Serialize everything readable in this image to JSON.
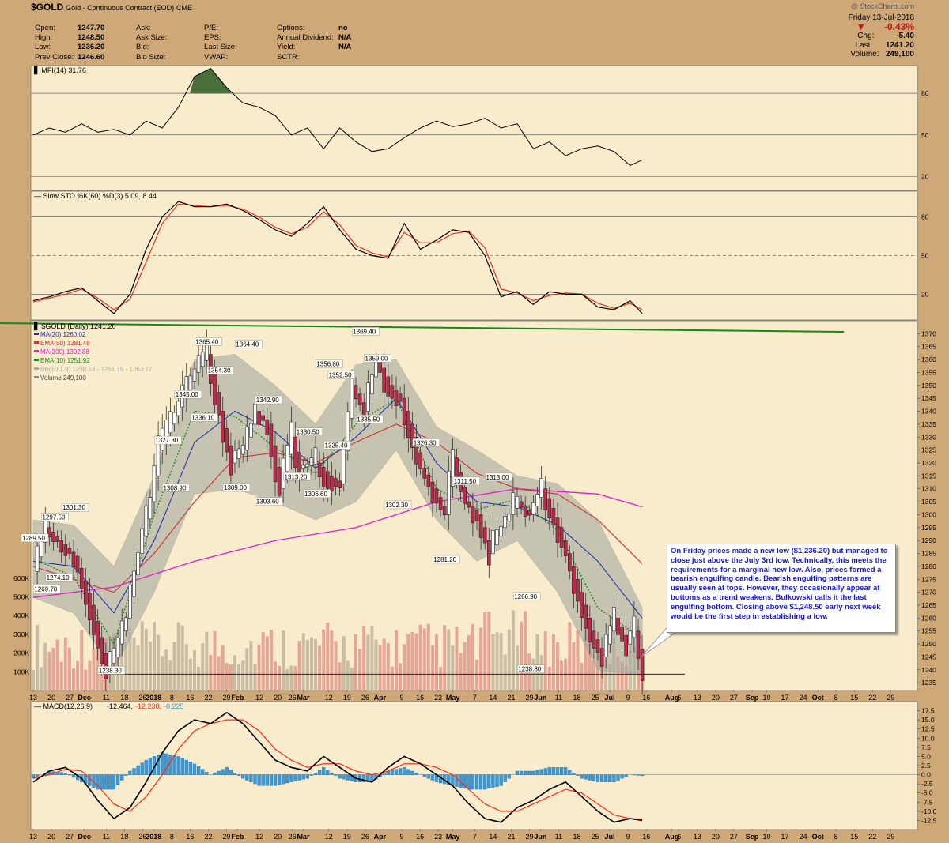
{
  "header": {
    "symbol": "$GOLD",
    "name": "Gold - Continuous Contract (EOD)",
    "exchange": "CME",
    "watermark": "@ StockCharts.com",
    "col1": [
      [
        "Open:",
        "1247.70"
      ],
      [
        "High:",
        "1248.50"
      ],
      [
        "Low:",
        "1236.20"
      ],
      [
        "Prev Close:",
        "1246.60"
      ]
    ],
    "col2": [
      [
        "Ask:",
        ""
      ],
      [
        "Ask Size:",
        ""
      ],
      [
        "Bid:",
        ""
      ],
      [
        "Bid Size:",
        ""
      ]
    ],
    "col3": [
      [
        "P/E:",
        ""
      ],
      [
        "EPS:",
        ""
      ],
      [
        "Last Size:",
        ""
      ],
      [
        "VWAP:",
        ""
      ]
    ],
    "col4": [
      [
        "Options:",
        "no"
      ],
      [
        "Annual Dividend:",
        "N/A"
      ],
      [
        "Yield:",
        "N/A"
      ],
      [
        "SCTR:",
        ""
      ]
    ],
    "date": "Friday  13-Jul-2018",
    "pct": "-0.43%",
    "chg_label": "Chg:",
    "chg": "-5.40",
    "last_label": "Last:",
    "last": "1241.20",
    "volume_label": "Volume:",
    "volume": "249,100"
  },
  "annotation": "On Friday prices made a new low ($1,236.20) but managed to close just above the July 3rd low. Technically, this meets the requirements for a marginal new low. Also, prices formed a bearish engulfing candle. Bearish engulfing patterns are usually seen at tops. However, they occasionally appear at bottoms as a trend weakens. Bulkowski calls it the last engulfing bottom. Closing above $1,248.50 early next week would be the first step in establishing a low.",
  "colors": {
    "background": "#cfa878",
    "price_panel": "#f8eccc",
    "up_candle": "#ffffff",
    "down_candle": "#c0294a",
    "ma20": "#2233aa",
    "ema50": "#c83232",
    "ma200": "#e01ecc",
    "ema10": "#1a8a1a",
    "band": "#a8a8a0",
    "trendline": "#138a13",
    "support": "#1515a8",
    "macd": "#000000",
    "signal": "#ff2a14",
    "hist": "#3a9ad8",
    "mfi_fill": "#4a6e3a"
  },
  "chart_data": [
    {
      "type": "line",
      "title": "MFI(14) 31.76",
      "ylim": [
        10,
        100
      ],
      "ticks": [
        "80",
        "50",
        "20"
      ],
      "x": [
        0,
        4,
        8,
        12,
        16,
        20,
        24,
        28,
        32,
        36,
        40,
        44,
        48,
        52,
        56,
        60,
        64,
        68,
        72,
        76,
        80,
        84,
        88,
        92,
        96,
        100,
        104,
        108,
        112,
        116,
        120,
        124,
        128,
        132,
        136,
        140,
        144,
        148,
        151
      ],
      "values": [
        50,
        55,
        52,
        58,
        52,
        54,
        50,
        60,
        55,
        70,
        92,
        98,
        84,
        73,
        70,
        64,
        50,
        55,
        40,
        55,
        45,
        38,
        40,
        48,
        55,
        60,
        56,
        58,
        62,
        55,
        58,
        40,
        45,
        35,
        40,
        42,
        38,
        28,
        32
      ]
    },
    {
      "type": "line",
      "title": "Slow STO %K(60) %D(3) 5.09, 8.44",
      "ylim": [
        0,
        100
      ],
      "ticks": [
        "80",
        "50",
        "20"
      ],
      "x": [
        0,
        4,
        8,
        12,
        16,
        20,
        24,
        28,
        32,
        36,
        40,
        44,
        48,
        52,
        56,
        60,
        64,
        68,
        72,
        76,
        80,
        84,
        88,
        92,
        96,
        100,
        104,
        108,
        112,
        116,
        120,
        124,
        128,
        132,
        136,
        140,
        144,
        148,
        151
      ],
      "series": [
        {
          "name": "%K",
          "values": [
            15,
            18,
            22,
            25,
            15,
            5,
            20,
            55,
            80,
            92,
            88,
            88,
            90,
            85,
            78,
            70,
            65,
            75,
            88,
            70,
            55,
            50,
            48,
            75,
            55,
            62,
            70,
            68,
            50,
            18,
            22,
            12,
            22,
            20,
            20,
            10,
            8,
            15,
            5
          ]
        },
        {
          "name": "%D",
          "values": [
            14,
            17,
            20,
            24,
            17,
            8,
            16,
            45,
            75,
            90,
            89,
            88,
            89,
            86,
            80,
            72,
            67,
            72,
            84,
            74,
            58,
            52,
            49,
            68,
            60,
            60,
            67,
            69,
            56,
            24,
            21,
            15,
            19,
            21,
            20,
            13,
            9,
            13,
            8
          ]
        }
      ]
    },
    {
      "type": "candlestick",
      "title": "$GOLD (Daily) 1241.20",
      "ylim": [
        1232,
        1375
      ],
      "legend": [
        {
          "name": "MA(20) 1260.02",
          "color": "#2233aa"
        },
        {
          "name": "EMA(50) 1281.48",
          "color": "#c83232"
        },
        {
          "name": "MA(200) 1302.88",
          "color": "#e01ecc"
        },
        {
          "name": "EMA(10) 1251.92",
          "color": "#1a8a1a"
        },
        {
          "name": "BB(10,1.9) 1238.53 - 1251.15 - 1263.77",
          "color": "#a8a8a0"
        },
        {
          "name": "Volume 249,100",
          "color": "#888888"
        }
      ],
      "close_path": {
        "x": [
          0,
          3,
          6,
          10,
          14,
          18,
          20,
          23,
          26,
          29,
          31,
          34,
          37,
          40,
          43,
          46,
          49,
          52,
          55,
          58,
          61,
          64,
          66,
          70,
          73,
          76,
          79,
          82,
          85,
          88,
          91,
          94,
          96,
          99,
          102,
          104,
          107,
          110,
          113,
          116,
          118,
          120,
          123,
          126,
          130,
          133,
          136,
          138,
          141,
          144,
          147,
          149,
          151
        ],
        "values": [
          1278,
          1295,
          1290,
          1284,
          1265,
          1240,
          1245,
          1260,
          1285,
          1305,
          1325,
          1335,
          1345,
          1355,
          1362,
          1340,
          1320,
          1325,
          1340,
          1335,
          1310,
          1330,
          1318,
          1320,
          1315,
          1312,
          1350,
          1340,
          1360,
          1350,
          1345,
          1330,
          1318,
          1310,
          1300,
          1322,
          1305,
          1300,
          1285,
          1295,
          1300,
          1305,
          1300,
          1310,
          1295,
          1280,
          1265,
          1255,
          1245,
          1260,
          1250,
          1255,
          1241
        ]
      },
      "ma200": {
        "x": [
          0,
          20,
          40,
          60,
          80,
          100,
          120,
          140,
          151
        ],
        "values": [
          1268,
          1272,
          1282,
          1290,
          1295,
          1305,
          1310,
          1308,
          1303
        ]
      },
      "ema50": {
        "x": [
          0,
          20,
          30,
          40,
          50,
          60,
          70,
          80,
          90,
          100,
          110,
          120,
          130,
          140,
          151
        ],
        "values": [
          1280,
          1270,
          1285,
          1305,
          1322,
          1324,
          1320,
          1328,
          1335,
          1328,
          1316,
          1310,
          1308,
          1298,
          1281
        ]
      },
      "ma20": {
        "x": [
          0,
          10,
          20,
          30,
          40,
          50,
          60,
          70,
          80,
          90,
          100,
          110,
          120,
          130,
          140,
          151
        ],
        "values": [
          1282,
          1280,
          1262,
          1290,
          1328,
          1340,
          1332,
          1318,
          1330,
          1345,
          1320,
          1305,
          1303,
          1296,
          1282,
          1260
        ]
      },
      "ema10": {
        "x": [
          0,
          10,
          20,
          30,
          40,
          50,
          60,
          70,
          80,
          90,
          100,
          110,
          120,
          130,
          140,
          151
        ],
        "values": [
          1283,
          1276,
          1250,
          1300,
          1340,
          1338,
          1326,
          1316,
          1335,
          1345,
          1310,
          1302,
          1306,
          1294,
          1264,
          1252
        ]
      },
      "bands": {
        "x": [
          0,
          10,
          20,
          30,
          40,
          50,
          60,
          70,
          80,
          90,
          100,
          110,
          120,
          130,
          140,
          151
        ],
        "upper": [
          1298,
          1296,
          1280,
          1315,
          1360,
          1362,
          1350,
          1335,
          1358,
          1360,
          1334,
          1325,
          1315,
          1312,
          1298,
          1264
        ],
        "lower": [
          1268,
          1262,
          1240,
          1270,
          1308,
          1310,
          1305,
          1298,
          1305,
          1325,
          1298,
          1282,
          1290,
          1270,
          1240,
          1238
        ]
      },
      "labels": [
        {
          "x": 0,
          "y": 1289.5,
          "text": "1289.50"
        },
        {
          "x": 5,
          "y": 1297.5,
          "text": "1297.50"
        },
        {
          "x": 10,
          "y": 1301.3,
          "text": "1301.30"
        },
        {
          "x": 3,
          "y": 1269.7,
          "text": "1269.70"
        },
        {
          "x": 6,
          "y": 1274.1,
          "text": "1274.10"
        },
        {
          "x": 19,
          "y": 1238.3,
          "text": "1238.30"
        },
        {
          "x": 33,
          "y": 1327.3,
          "text": "1327.30"
        },
        {
          "x": 38,
          "y": 1345.0,
          "text": "1345.00"
        },
        {
          "x": 43,
          "y": 1365.4,
          "text": "1365.40"
        },
        {
          "x": 46,
          "y": 1354.3,
          "text": "1354.30"
        },
        {
          "x": 42,
          "y": 1336.1,
          "text": "1336.10"
        },
        {
          "x": 35,
          "y": 1308.9,
          "text": "1308.90"
        },
        {
          "x": 53,
          "y": 1364.4,
          "text": "1364.40"
        },
        {
          "x": 58,
          "y": 1342.9,
          "text": "1342.90"
        },
        {
          "x": 50,
          "y": 1309.0,
          "text": "1309.00"
        },
        {
          "x": 58,
          "y": 1303.6,
          "text": "1303.60"
        },
        {
          "x": 65,
          "y": 1313.2,
          "text": "1313.20"
        },
        {
          "x": 68,
          "y": 1330.5,
          "text": "1330.50"
        },
        {
          "x": 70,
          "y": 1306.6,
          "text": "1306.60"
        },
        {
          "x": 73,
          "y": 1356.8,
          "text": "1356.80"
        },
        {
          "x": 76,
          "y": 1352.5,
          "text": "1352.50"
        },
        {
          "x": 75,
          "y": 1325.4,
          "text": "1325.40"
        },
        {
          "x": 82,
          "y": 1369.4,
          "text": "1369.40"
        },
        {
          "x": 85,
          "y": 1359.0,
          "text": "1359.00"
        },
        {
          "x": 83,
          "y": 1335.5,
          "text": "1335.50"
        },
        {
          "x": 97,
          "y": 1326.3,
          "text": "1326.30"
        },
        {
          "x": 90,
          "y": 1302.3,
          "text": "1302.30"
        },
        {
          "x": 107,
          "y": 1311.5,
          "text": "1311.50"
        },
        {
          "x": 115,
          "y": 1313.0,
          "text": "1313.00"
        },
        {
          "x": 102,
          "y": 1281.2,
          "text": "1281.20"
        },
        {
          "x": 122,
          "y": 1266.9,
          "text": "1266.90"
        },
        {
          "x": 123,
          "y": 1238.8,
          "text": "1238.80"
        }
      ],
      "right_ticks": [
        "1370",
        "1365",
        "1360",
        "1355",
        "1350",
        "1345",
        "1340",
        "1335",
        "1330",
        "1325",
        "1320",
        "1315",
        "1310",
        "1305",
        "1300",
        "1295",
        "1290",
        "1285",
        "1280",
        "1275",
        "1270",
        "1265",
        "1260",
        "1255",
        "1250",
        "1245",
        "1240",
        "1235"
      ],
      "volume_ticks": [
        "600K",
        "500K",
        "400K",
        "300K",
        "200K",
        "100K"
      ]
    },
    {
      "type": "line",
      "title": "MACD(12,26,9)",
      "legend": [
        {
          "name": "-12.464",
          "color": "#000000"
        },
        {
          "name": "-12.238",
          "color": "#ff2a14"
        },
        {
          "name": "-0.225",
          "color": "#3a9ad8"
        }
      ],
      "ylim": [
        -15,
        20
      ],
      "ticks": [
        "17.5",
        "15.0",
        "12.5",
        "10.0",
        "7.5",
        "5.0",
        "2.5",
        "0.0",
        "-2.5",
        "-5.0",
        "-7.5",
        "-10.0",
        "-12.5"
      ],
      "x": [
        0,
        4,
        8,
        12,
        16,
        20,
        24,
        28,
        32,
        36,
        40,
        44,
        48,
        52,
        56,
        60,
        64,
        68,
        72,
        76,
        80,
        84,
        88,
        92,
        96,
        100,
        104,
        108,
        112,
        116,
        120,
        124,
        128,
        132,
        136,
        140,
        144,
        148,
        151
      ],
      "series": [
        {
          "name": "MACD",
          "values": [
            -2,
            1,
            2,
            -1,
            -7,
            -12,
            -9,
            -2,
            6,
            12,
            15,
            14,
            17,
            14,
            9,
            4,
            2,
            1,
            5,
            2,
            -1,
            -2,
            2,
            5,
            3,
            0,
            -3,
            -8,
            -12,
            -13,
            -9,
            -7,
            -4,
            -2,
            -6,
            -10,
            -13,
            -12,
            -12.5
          ]
        },
        {
          "name": "Signal",
          "values": [
            -1,
            0,
            1.5,
            1,
            -3,
            -8,
            -10,
            -6,
            0,
            7,
            12,
            14,
            15,
            15,
            12,
            7,
            4,
            2,
            3,
            3,
            1,
            0,
            1,
            3,
            3,
            2,
            0,
            -4,
            -8,
            -10,
            -10,
            -8,
            -6,
            -4,
            -5,
            -8,
            -11,
            -12,
            -12.2
          ]
        }
      ],
      "histogram_sample": "histogram = MACD - Signal per bar"
    }
  ],
  "x_axis": {
    "labels": [
      {
        "x": 0,
        "text": "13"
      },
      {
        "x": 5,
        "text": "20"
      },
      {
        "x": 10,
        "text": "27"
      },
      {
        "x": 14,
        "text": "Dec",
        "bold": true
      },
      {
        "x": 20,
        "text": "11"
      },
      {
        "x": 25,
        "text": "18"
      },
      {
        "x": 30,
        "text": "26"
      },
      {
        "x": 33,
        "text": "2018",
        "bold": true
      },
      {
        "x": 38,
        "text": "8"
      },
      {
        "x": 43,
        "text": "16"
      },
      {
        "x": 48,
        "text": "22"
      },
      {
        "x": 53,
        "text": "29"
      },
      {
        "x": 56,
        "text": "Feb",
        "bold": true
      },
      {
        "x": 62,
        "text": "12"
      },
      {
        "x": 67,
        "text": "20"
      },
      {
        "x": 71,
        "text": "26"
      },
      {
        "x": 74,
        "text": "Mar",
        "bold": true
      },
      {
        "x": 81,
        "text": "12"
      },
      {
        "x": 86,
        "text": "19"
      },
      {
        "x": 91,
        "text": "26"
      },
      {
        "x": 95,
        "text": "Apr",
        "bold": true
      },
      {
        "x": 101,
        "text": "9"
      },
      {
        "x": 106,
        "text": "16"
      },
      {
        "x": 111,
        "text": "23"
      },
      {
        "x": 115,
        "text": "May",
        "bold": true
      },
      {
        "x": 121,
        "text": "7"
      },
      {
        "x": 126,
        "text": "14"
      },
      {
        "x": 131,
        "text": "21"
      },
      {
        "x": 136,
        "text": "29"
      },
      {
        "x": 139,
        "text": "Jun",
        "bold": true
      },
      {
        "x": 144,
        "text": "11"
      },
      {
        "x": 149,
        "text": "18"
      },
      {
        "x": 154,
        "text": "25"
      },
      {
        "x": 158,
        "text": "Jul",
        "bold": true
      },
      {
        "x": 163,
        "text": "9"
      },
      {
        "x": 168,
        "text": "16"
      },
      {
        "x": 175,
        "text": "Aug",
        "bold": true
      },
      {
        "x": 177,
        "text": "6"
      },
      {
        "x": 182,
        "text": "13"
      },
      {
        "x": 187,
        "text": "20"
      },
      {
        "x": 192,
        "text": "27"
      },
      {
        "x": 197,
        "text": "Sep",
        "bold": true
      },
      {
        "x": 201,
        "text": "10"
      },
      {
        "x": 206,
        "text": "17"
      },
      {
        "x": 211,
        "text": "24"
      },
      {
        "x": 215,
        "text": "Oct",
        "bold": true
      },
      {
        "x": 220,
        "text": "8"
      },
      {
        "x": 225,
        "text": "15"
      },
      {
        "x": 230,
        "text": "22"
      },
      {
        "x": 235,
        "text": "29"
      }
    ]
  }
}
